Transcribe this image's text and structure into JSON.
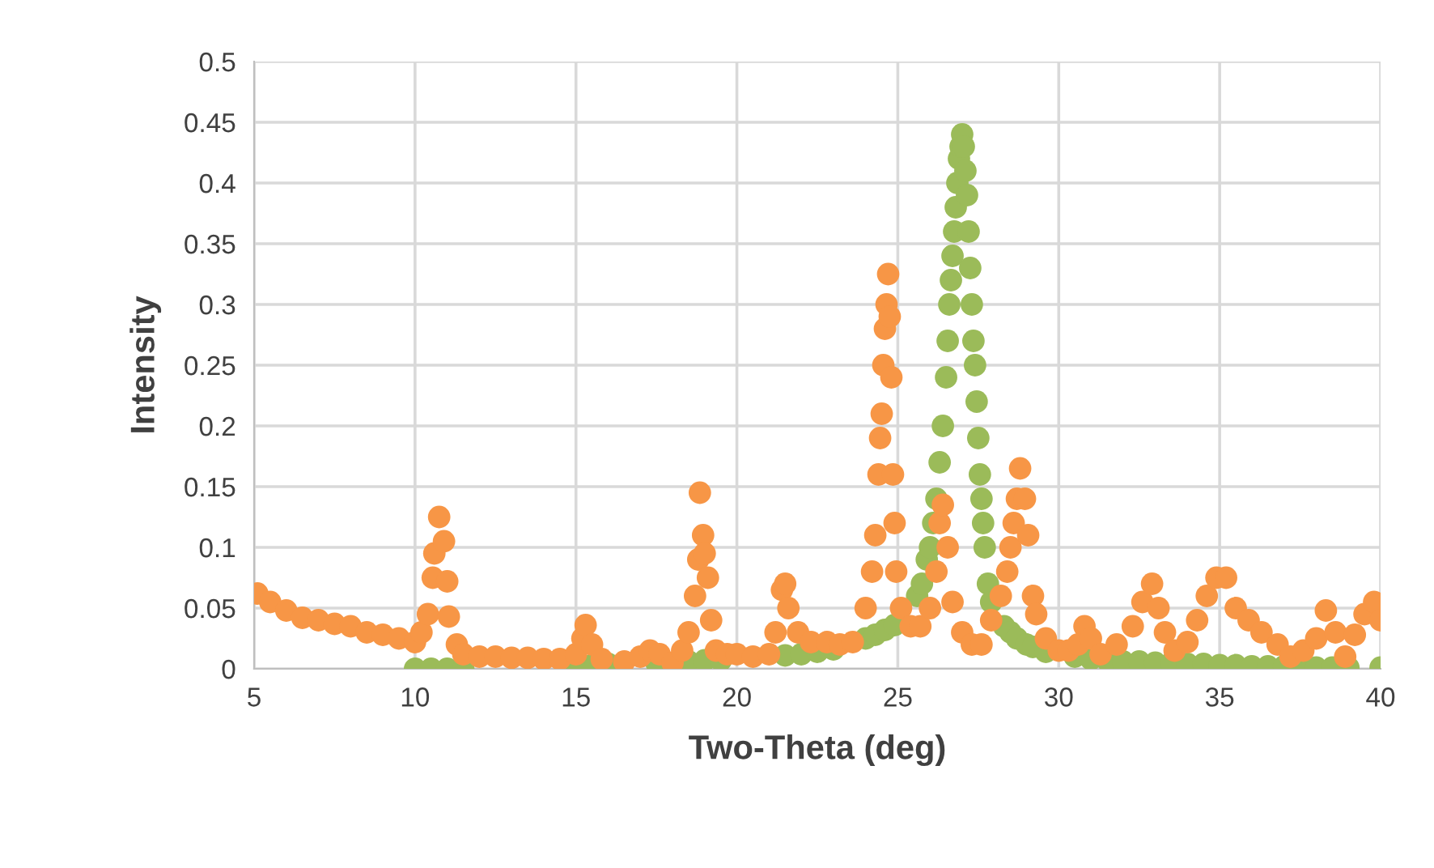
{
  "chart_data": {
    "type": "scatter",
    "xlabel": "Two-Theta (deg)",
    "ylabel": "Intensity",
    "xlim": [
      5,
      40
    ],
    "xticks": [
      5,
      10,
      15,
      20,
      25,
      30,
      35,
      40
    ],
    "ylim": [
      0,
      0.5
    ],
    "yticks": [
      0,
      0.05,
      0.1,
      0.15,
      0.2,
      0.25,
      0.3,
      0.35,
      0.4,
      0.45,
      0.5
    ],
    "grid": true,
    "legend": false,
    "marker": "circle",
    "series": [
      {
        "color": "#9bbb59",
        "x": [
          10,
          10.5,
          11,
          11.5,
          15,
          15.5,
          16,
          17.5,
          18.5,
          19,
          19.5,
          21.5,
          22,
          22.5,
          23,
          24,
          24.3,
          24.6,
          24.9,
          25.6,
          25.75,
          25.9,
          26,
          26.1,
          26.2,
          26.3,
          26.4,
          26.5,
          26.55,
          26.6,
          26.65,
          26.7,
          26.75,
          26.8,
          26.85,
          26.9,
          26.95,
          27,
          27.05,
          27.1,
          27.15,
          27.2,
          27.25,
          27.3,
          27.35,
          27.4,
          27.45,
          27.5,
          27.55,
          27.6,
          27.65,
          27.7,
          27.8,
          27.9,
          28.3,
          28.5,
          28.7,
          29,
          29.2,
          29.6,
          30.5,
          31,
          31.5,
          32,
          32.5,
          33,
          33.5,
          34,
          34.5,
          35,
          35.5,
          36,
          36.5,
          37,
          37.5,
          38,
          38.5,
          39,
          40
        ],
        "values": [
          0,
          0,
          0,
          0,
          0.003,
          0.003,
          0.004,
          0.005,
          0.006,
          0.007,
          0.007,
          0.011,
          0.012,
          0.014,
          0.016,
          0.025,
          0.028,
          0.032,
          0.036,
          0.06,
          0.07,
          0.09,
          0.1,
          0.12,
          0.14,
          0.17,
          0.2,
          0.24,
          0.27,
          0.3,
          0.32,
          0.34,
          0.36,
          0.38,
          0.4,
          0.42,
          0.43,
          0.44,
          0.43,
          0.41,
          0.39,
          0.36,
          0.33,
          0.3,
          0.27,
          0.25,
          0.22,
          0.19,
          0.16,
          0.14,
          0.12,
          0.1,
          0.07,
          0.055,
          0.035,
          0.03,
          0.025,
          0.02,
          0.018,
          0.014,
          0.01,
          0.008,
          0.007,
          0.006,
          0.006,
          0.005,
          0.005,
          0.004,
          0.004,
          0.003,
          0.003,
          0.002,
          0.002,
          0.002,
          0.002,
          0.001,
          0.001,
          0.001,
          0.001
        ]
      },
      {
        "color": "#f79646",
        "x": [
          5.1,
          5.5,
          6,
          6.5,
          7,
          7.5,
          8,
          8.5,
          9,
          9.5,
          10,
          10.2,
          10.4,
          10.55,
          10.6,
          10.75,
          10.9,
          11,
          11.05,
          11.3,
          11.5,
          12,
          12.5,
          13,
          13.5,
          14,
          14.5,
          15,
          15.2,
          15.3,
          15.5,
          15.8,
          16.5,
          17,
          17.3,
          17.6,
          18,
          18.3,
          18.5,
          18.7,
          18.8,
          18.85,
          18.95,
          19,
          19.1,
          19.2,
          19.35,
          19.7,
          20,
          20.5,
          21,
          21.2,
          21.4,
          21.5,
          21.6,
          21.9,
          22.3,
          22.8,
          23.2,
          23.6,
          24,
          24.2,
          24.3,
          24.4,
          24.45,
          24.5,
          24.55,
          24.6,
          24.65,
          24.7,
          24.75,
          24.8,
          24.85,
          24.9,
          24.95,
          25.1,
          25.4,
          25.7,
          26,
          26.2,
          26.3,
          26.4,
          26.55,
          26.7,
          27,
          27.3,
          27.6,
          27.9,
          28.2,
          28.4,
          28.5,
          28.6,
          28.7,
          28.8,
          28.95,
          29.05,
          29.2,
          29.3,
          29.6,
          30,
          30.3,
          30.6,
          30.8,
          31,
          31.3,
          31.8,
          32.3,
          32.6,
          32.9,
          33.1,
          33.3,
          33.6,
          34,
          34.3,
          34.6,
          34.9,
          35.2,
          35.5,
          35.9,
          36.3,
          36.8,
          37.2,
          37.6,
          38,
          38.3,
          38.6,
          38.9,
          39.2,
          39.5,
          39.8,
          40
        ],
        "values": [
          0.062,
          0.055,
          0.048,
          0.042,
          0.04,
          0.037,
          0.035,
          0.03,
          0.028,
          0.025,
          0.022,
          0.03,
          0.045,
          0.075,
          0.095,
          0.125,
          0.105,
          0.072,
          0.043,
          0.02,
          0.012,
          0.01,
          0.01,
          0.009,
          0.009,
          0.008,
          0.008,
          0.012,
          0.025,
          0.036,
          0.02,
          0.008,
          0.006,
          0.01,
          0.015,
          0.012,
          0.005,
          0.015,
          0.03,
          0.06,
          0.09,
          0.145,
          0.11,
          0.095,
          0.075,
          0.04,
          0.015,
          0.012,
          0.012,
          0.01,
          0.012,
          0.03,
          0.065,
          0.07,
          0.05,
          0.03,
          0.022,
          0.022,
          0.02,
          0.022,
          0.05,
          0.08,
          0.11,
          0.16,
          0.19,
          0.21,
          0.25,
          0.28,
          0.3,
          0.325,
          0.29,
          0.24,
          0.16,
          0.12,
          0.08,
          0.05,
          0.035,
          0.035,
          0.05,
          0.08,
          0.12,
          0.135,
          0.1,
          0.055,
          0.03,
          0.02,
          0.02,
          0.04,
          0.06,
          0.08,
          0.1,
          0.12,
          0.14,
          0.165,
          0.14,
          0.11,
          0.06,
          0.045,
          0.025,
          0.015,
          0.015,
          0.02,
          0.035,
          0.025,
          0.012,
          0.02,
          0.035,
          0.055,
          0.07,
          0.05,
          0.03,
          0.015,
          0.022,
          0.04,
          0.06,
          0.075,
          0.075,
          0.05,
          0.04,
          0.03,
          0.02,
          0.01,
          0.015,
          0.025,
          0.048,
          0.03,
          0.01,
          0.028,
          0.045,
          0.055,
          0.04
        ]
      }
    ]
  }
}
